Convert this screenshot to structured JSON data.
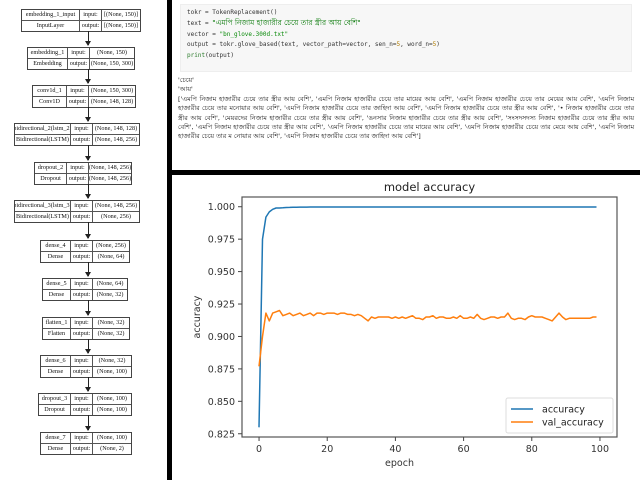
{
  "model_diagram": {
    "nodes": [
      {
        "name": "embedding_1_input",
        "type": "InputLayer",
        "input_label": "input:",
        "output_label": "output:",
        "input": "[(None, 150)]",
        "output": "[(None, 150)]"
      },
      {
        "name": "embedding_1",
        "type": "Embedding",
        "input_label": "input:",
        "output_label": "output:",
        "input": "(None, 150)",
        "output": "(None, 150, 300)"
      },
      {
        "name": "conv1d_1",
        "type": "Conv1D",
        "input_label": "input:",
        "output_label": "output:",
        "input": "(None, 150, 300)",
        "output": "(None, 148, 128)"
      },
      {
        "name": "bidirectional_2(lstm_2)",
        "type": "Bidirectional(LSTM)",
        "input_label": "input:",
        "output_label": "output:",
        "input": "(None, 148, 128)",
        "output": "(None, 148, 256)"
      },
      {
        "name": "dropout_2",
        "type": "Dropout",
        "input_label": "input:",
        "output_label": "output:",
        "input": "(None, 148, 256)",
        "output": "(None, 148, 256)"
      },
      {
        "name": "bidirectional_3(lstm_3)",
        "type": "Bidirectional(LSTM)",
        "input_label": "input:",
        "output_label": "output:",
        "input": "(None, 148, 256)",
        "output": "(None, 256)"
      },
      {
        "name": "dense_4",
        "type": "Dense",
        "input_label": "input:",
        "output_label": "output:",
        "input": "(None, 256)",
        "output": "(None, 64)"
      },
      {
        "name": "dense_5",
        "type": "Dense",
        "input_label": "input:",
        "output_label": "output:",
        "input": "(None, 64)",
        "output": "(None, 32)"
      },
      {
        "name": "flatten_1",
        "type": "Flatten",
        "input_label": "input:",
        "output_label": "output:",
        "input": "(None, 32)",
        "output": "(None, 32)"
      },
      {
        "name": "dense_6",
        "type": "Dense",
        "input_label": "input:",
        "output_label": "output:",
        "input": "(None, 32)",
        "output": "(None, 100)"
      },
      {
        "name": "dropout_3",
        "type": "Dropout",
        "input_label": "input:",
        "output_label": "output:",
        "input": "(None, 100)",
        "output": "(None, 100)"
      },
      {
        "name": "dense_7",
        "type": "Dense",
        "input_label": "input:",
        "output_label": "output:",
        "input": "(None, 100)",
        "output": "(None, 2)"
      }
    ]
  },
  "code_cell": {
    "line1": "tokr = TokenReplacement()",
    "line2_prefix": "text = ",
    "line2_string": "\"এমপি নিজাম হাজারীর চেয়ে তার স্ত্রীর আয় বেশি\"",
    "line3_prefix": "vector = ",
    "line3_string": "\"bn_glove.300d.txt\"",
    "line4_a": "output = tokr.glove_based(text, vector_path=vector, sen_n=",
    "line4_n1": "5",
    "line4_b": ", word_n=",
    "line4_n2": "5",
    "line4_c": ")",
    "line5_fn": "print",
    "line5_rest": "(output)"
  },
  "output": {
    "line1": "'চেয়ে'",
    "line2": "'আয়'",
    "result": "['এমপি নিজাম হাজারীর চেয়ে তার স্ত্রীর আয় বেশি', 'এমপি নিজাম হাজারীর চেয়ে তার মায়ের আয় বেশি', 'এমপি নিজাম হাজারীর চেয়ে তার মেয়ের আয় বেশি', 'এমপি নিজাম হাজারীর চেয়ে তার মনোয়ার আয় বেশি', 'এমপি নিজাম হাজারীর চেয়ে তার জাহিদা আয় বেশি', 'এমপি নিজাম হাজারীর চেয়ে তার স্ত্রীর আয় বেশি', '• নিজাম হাজারীর চেয়ে তার স্ত্রীর আয় বেশি', 'মেয়রদের নিজাম হাজারীর চেয়ে তার স্ত্রীর আয় বেশি', 'ঙনসার নিজাম হাজারীর চেয়ে তার স্ত্রীর আয় বেশি', 'সংসদসদস্য নিজাম হাজারীর চেয়ে তার স্ত্রীর আয় বেশি', 'এমপি নিজাম হাজারীর চেয়ে তার স্ত্রীর আয় বেশি', 'এমপি নিজাম হাজারীর চেয়ে তার মায়ের আয় বেশি', 'এমপি নিজাম হাজারীর চেয়ে তার মেয়ে আয় বেশি', 'এমপি নিজাম হাজারীর চেয়ে তার ম নোয়ার আয় বেশি', 'এমপি নিজাম হাজারীর চেয়ে তার জাহিদা আয় বেশি']"
  },
  "colors": {
    "accuracy": "#1f77b4",
    "val_accuracy": "#ff7f0e",
    "code_string": "#0a8a0a",
    "divider": "#000000"
  },
  "chart_data": {
    "type": "line",
    "title": "model accuracy",
    "xlabel": "epoch",
    "ylabel": "accuracy",
    "xlim": [
      -5,
      105
    ],
    "ylim": [
      0.8225,
      1.0075
    ],
    "xticks": [
      "0",
      "20",
      "40",
      "60",
      "80",
      "100"
    ],
    "yticks": [
      "0.825",
      "0.850",
      "0.875",
      "0.900",
      "0.925",
      "0.950",
      "0.975",
      "1.000"
    ],
    "legend_position": "lower right",
    "grid": false,
    "x": [
      0,
      1,
      2,
      3,
      4,
      5,
      6,
      7,
      8,
      9,
      10,
      11,
      12,
      13,
      14,
      15,
      16,
      17,
      18,
      19,
      20,
      21,
      22,
      23,
      24,
      25,
      26,
      27,
      28,
      29,
      30,
      31,
      32,
      33,
      34,
      35,
      36,
      37,
      38,
      39,
      40,
      41,
      42,
      43,
      44,
      45,
      46,
      47,
      48,
      49,
      50,
      51,
      52,
      53,
      54,
      55,
      56,
      57,
      58,
      59,
      60,
      61,
      62,
      63,
      64,
      65,
      66,
      67,
      68,
      69,
      70,
      71,
      72,
      73,
      74,
      75,
      76,
      77,
      78,
      79,
      80,
      81,
      82,
      83,
      84,
      85,
      86,
      87,
      88,
      89,
      90,
      91,
      92,
      93,
      94,
      95,
      96,
      97,
      98,
      99
    ],
    "series": [
      {
        "name": "accuracy",
        "values": [
          0.83,
          0.975,
          0.992,
          0.996,
          0.998,
          0.999,
          0.999,
          0.9992,
          0.9994,
          0.9995,
          0.9996,
          0.9996,
          0.9997,
          0.9997,
          0.9997,
          0.9998,
          0.9998,
          0.9998,
          0.9998,
          0.9998,
          0.9998,
          0.9998,
          0.9998,
          0.9998,
          0.9998,
          0.9998,
          0.9998,
          0.9998,
          0.9998,
          0.9998,
          0.9998,
          0.9998,
          0.9998,
          0.9998,
          0.9998,
          0.9998,
          0.9998,
          0.9998,
          0.9998,
          0.9998,
          0.9998,
          0.9998,
          0.9998,
          0.9998,
          0.9998,
          0.9998,
          0.9998,
          0.9998,
          0.9998,
          0.9998,
          0.9998,
          0.9998,
          0.9998,
          0.9998,
          0.9998,
          0.9998,
          0.9998,
          0.9998,
          0.9998,
          0.9998,
          0.9998,
          0.9998,
          0.9998,
          0.9998,
          0.9998,
          0.9998,
          0.9998,
          0.9998,
          0.9998,
          0.9998,
          0.9998,
          0.9998,
          0.9998,
          0.9998,
          0.9998,
          0.9998,
          0.9998,
          0.9998,
          0.9998,
          0.9998,
          0.9998,
          0.9998,
          0.9998,
          0.9998,
          0.9998,
          0.9998,
          0.9998,
          0.9998,
          0.9998,
          0.9998,
          0.9998,
          0.9998,
          0.9998,
          0.9998,
          0.9998,
          0.9998,
          0.9998,
          0.9998,
          0.9998,
          0.9998
        ]
      },
      {
        "name": "val_accuracy",
        "values": [
          0.877,
          0.9,
          0.918,
          0.912,
          0.918,
          0.919,
          0.92,
          0.916,
          0.917,
          0.918,
          0.916,
          0.917,
          0.918,
          0.916,
          0.917,
          0.918,
          0.916,
          0.918,
          0.918,
          0.917,
          0.918,
          0.918,
          0.918,
          0.917,
          0.918,
          0.918,
          0.917,
          0.917,
          0.916,
          0.917,
          0.916,
          0.914,
          0.912,
          0.915,
          0.914,
          0.915,
          0.915,
          0.915,
          0.915,
          0.914,
          0.915,
          0.914,
          0.915,
          0.914,
          0.915,
          0.916,
          0.914,
          0.914,
          0.913,
          0.915,
          0.915,
          0.916,
          0.914,
          0.915,
          0.915,
          0.914,
          0.914,
          0.915,
          0.914,
          0.916,
          0.914,
          0.914,
          0.915,
          0.914,
          0.917,
          0.914,
          0.913,
          0.914,
          0.915,
          0.915,
          0.914,
          0.915,
          0.915,
          0.918,
          0.914,
          0.913,
          0.914,
          0.914,
          0.913,
          0.915,
          0.916,
          0.915,
          0.915,
          0.915,
          0.914,
          0.913,
          0.912,
          0.915,
          0.918,
          0.915,
          0.913,
          0.914,
          0.914,
          0.914,
          0.914,
          0.914,
          0.914,
          0.914,
          0.915,
          0.915
        ]
      }
    ]
  }
}
